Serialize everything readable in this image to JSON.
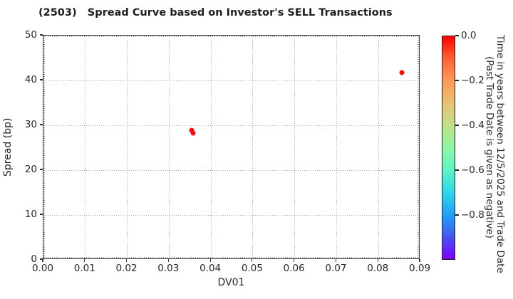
{
  "chart_data": {
    "type": "scatter",
    "title": "(2503)   Spread Curve based on Investor's SELL Transactions",
    "xlabel": "DV01",
    "ylabel": "Spread (bp)",
    "xlim": [
      0.0,
      0.09
    ],
    "ylim": [
      0,
      50
    ],
    "grid": true,
    "xticks": {
      "values": [
        0.0,
        0.01,
        0.02,
        0.03,
        0.04,
        0.05,
        0.06,
        0.07,
        0.08,
        0.09
      ],
      "labels": [
        "0.00",
        "0.01",
        "0.02",
        "0.03",
        "0.04",
        "0.05",
        "0.06",
        "0.07",
        "0.08",
        "0.09"
      ]
    },
    "yticks": {
      "values": [
        0,
        10,
        20,
        30,
        40,
        50
      ],
      "labels": [
        "0",
        "10",
        "20",
        "30",
        "40",
        "50"
      ]
    },
    "points": [
      {
        "x": 0.0354,
        "y": 28.9,
        "time_value": 0.0
      },
      {
        "x": 0.0358,
        "y": 28.2,
        "time_value": 0.0
      },
      {
        "x": 0.0856,
        "y": 41.7,
        "time_value": 0.0
      }
    ],
    "marker_color": "#f20f0d",
    "colorbar": {
      "label_line1": "Time in years between 12/5/2025 and Trade Date",
      "label_line2": "(Past Trade Date is given as negative)",
      "range_top_to_bottom": [
        0.0,
        -1.0
      ],
      "ticks": {
        "values": [
          0.0,
          -0.2,
          -0.4,
          -0.6,
          -0.8
        ],
        "labels": [
          "0.0",
          "−0.2",
          "−0.4",
          "−0.6",
          "−0.8"
        ]
      },
      "colormap": "rainbow",
      "gradient_top_to_bottom": [
        "#ff0000",
        "#ff6133",
        "#ff9b56",
        "#e8c173",
        "#bfe289",
        "#8ff7a5",
        "#5ff3c7",
        "#31d7e9",
        "#1fa2f7",
        "#4256f2",
        "#7c00fe"
      ]
    }
  },
  "colors": {
    "grid": "#a6a6a6",
    "spine": "#333333",
    "text": "#262626"
  }
}
